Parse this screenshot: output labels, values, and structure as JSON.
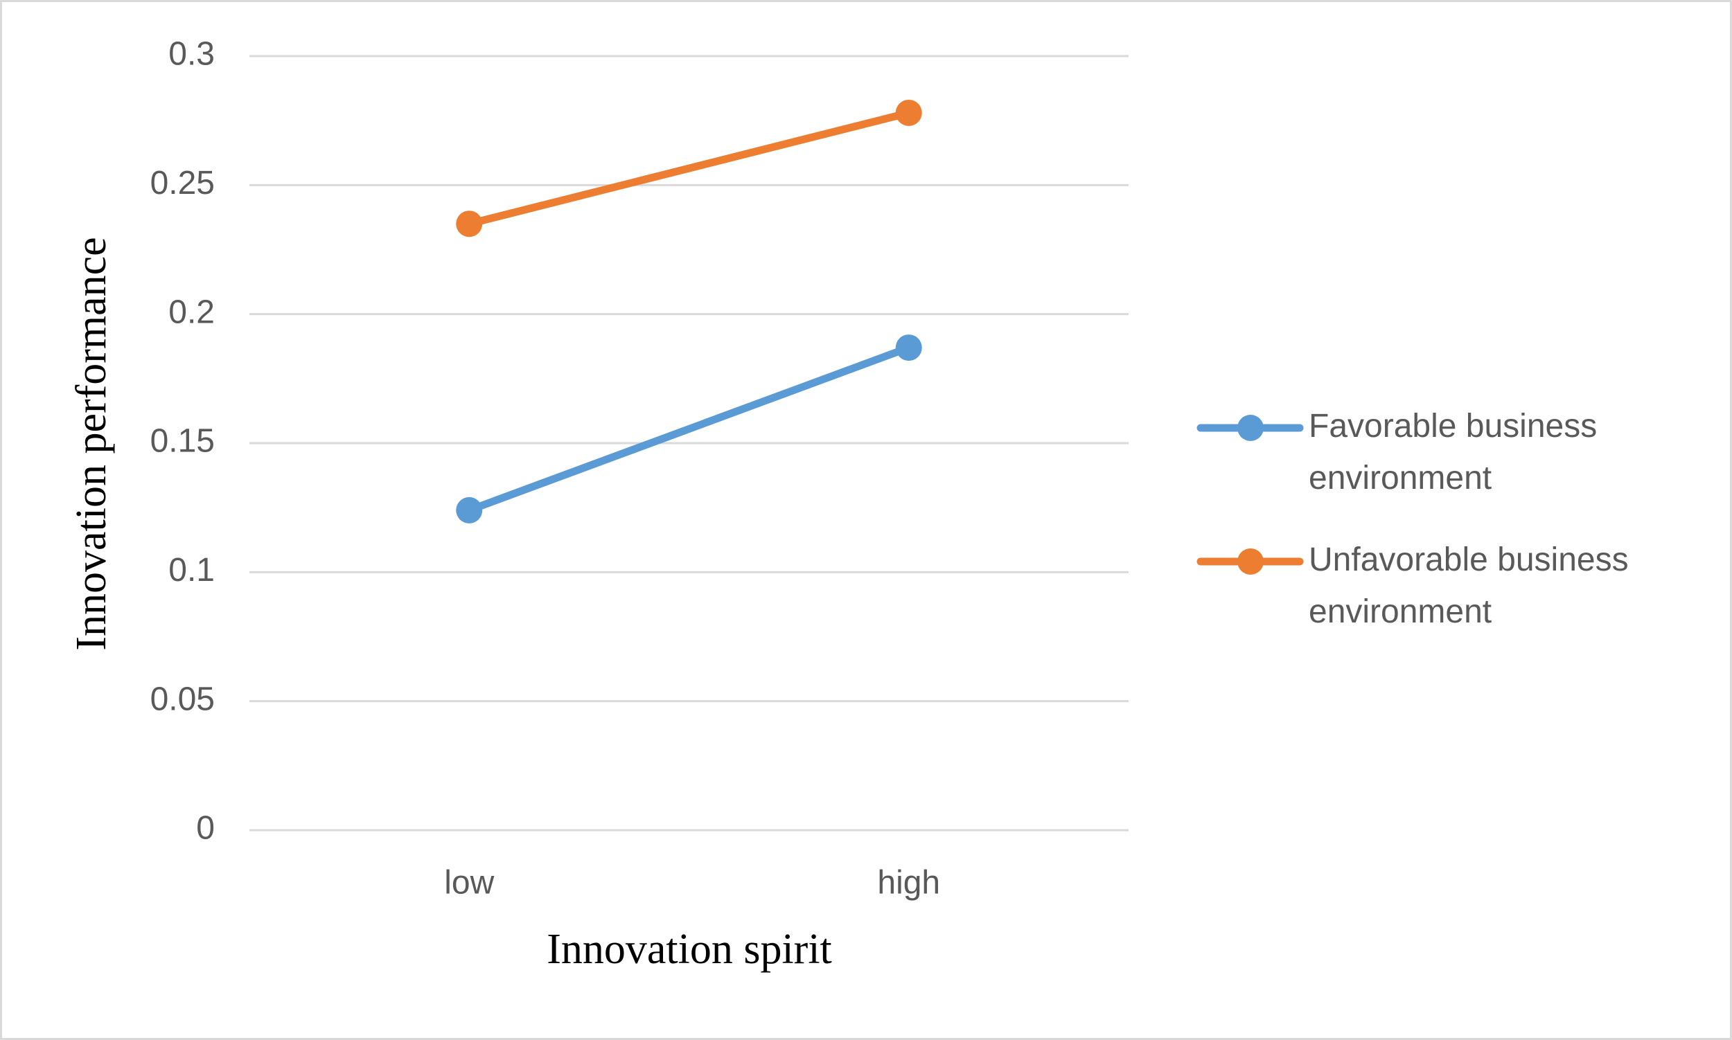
{
  "chart_data": {
    "type": "line",
    "x_label": "Innovation spirit",
    "y_label": "Innovation performance",
    "categories": [
      "low",
      "high"
    ],
    "series": [
      {
        "name": "Favorable business environment",
        "color": "#5b9bd5",
        "values": [
          0.124,
          0.187
        ]
      },
      {
        "name": "Unfavorable business environment",
        "color": "#ed7d31",
        "values": [
          0.235,
          0.278
        ]
      }
    ],
    "ylim": [
      0,
      0.3
    ],
    "yticks": [
      0,
      0.05,
      0.1,
      0.15,
      0.2,
      0.25,
      0.3
    ],
    "grid": true,
    "legend": "right"
  }
}
